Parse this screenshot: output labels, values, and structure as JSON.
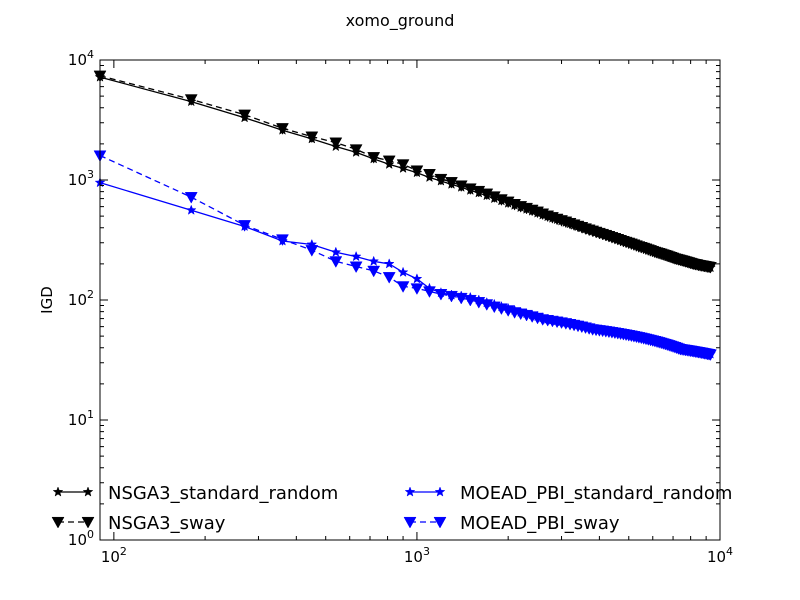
{
  "chart_data": {
    "type": "line",
    "title": "xomo_ground",
    "xlabel": "",
    "ylabel": "IGD",
    "xscale": "log",
    "yscale": "log",
    "xlim": [
      90,
      10000
    ],
    "ylim": [
      1,
      10000
    ],
    "x_ticks": [
      {
        "base": "10",
        "exp": "2",
        "value": 100
      },
      {
        "base": "10",
        "exp": "3",
        "value": 1000
      },
      {
        "base": "10",
        "exp": "4",
        "value": 10000
      }
    ],
    "y_ticks": [
      {
        "base": "10",
        "exp": "0",
        "value": 1
      },
      {
        "base": "10",
        "exp": "1",
        "value": 10
      },
      {
        "base": "10",
        "exp": "2",
        "value": 100
      },
      {
        "base": "10",
        "exp": "3",
        "value": 1000
      },
      {
        "base": "10",
        "exp": "4",
        "value": 10000
      }
    ],
    "legend_position": "bottom-left",
    "series": [
      {
        "name": "NSGA3_standard_random",
        "color": "#000000",
        "line": "solid",
        "marker": "star",
        "x": [
          90,
          180,
          270,
          360,
          450,
          540,
          630,
          720,
          810,
          900,
          1000,
          1100,
          1200,
          1300,
          1400,
          1500,
          1600,
          1700,
          1800,
          1900,
          2000,
          2100,
          2200,
          2300,
          2400,
          2500,
          2600,
          2700,
          2800,
          2900,
          3000,
          3100,
          3200,
          3300,
          3400,
          3500,
          3600,
          3700,
          3800,
          3900,
          4000,
          4100,
          4200,
          4300,
          4400,
          4500,
          4600,
          4700,
          4800,
          4900,
          5000,
          5100,
          5200,
          5300,
          5400,
          5500,
          5600,
          5700,
          5800,
          5900,
          6000,
          6100,
          6200,
          6300,
          6400,
          6500,
          6600,
          6700,
          6800,
          6900,
          7000,
          7100,
          7200,
          7300,
          7400,
          7500,
          7600,
          7700,
          7800,
          7900,
          8000,
          8100,
          8200,
          8300,
          8400,
          8500,
          8600,
          8700,
          8800,
          8900,
          9000,
          9100,
          9200,
          9300
        ],
        "values": [
          7200,
          4500,
          3300,
          2600,
          2200,
          1900,
          1700,
          1500,
          1350,
          1250,
          1150,
          1050,
          980,
          920,
          870,
          820,
          780,
          740,
          700,
          670,
          640,
          615,
          590,
          570,
          550,
          530,
          510,
          495,
          480,
          468,
          455,
          443,
          432,
          420,
          410,
          400,
          390,
          382,
          374,
          366,
          358,
          351,
          344,
          337,
          330,
          324,
          318,
          312,
          306,
          301,
          296,
          291,
          286,
          281,
          276,
          272,
          268,
          264,
          260,
          256,
          252,
          249,
          246,
          243,
          240,
          237,
          234,
          231,
          228,
          225,
          223,
          220,
          218,
          216,
          214,
          212,
          210,
          208,
          206,
          204,
          202,
          200,
          198,
          197,
          196,
          194,
          193,
          192,
          191,
          190,
          189,
          188,
          187,
          186
        ]
      },
      {
        "name": "NSGA3_sway",
        "color": "#000000",
        "line": "dashed",
        "marker": "triangle-down",
        "x": [
          90,
          180,
          270,
          360,
          450,
          540,
          630,
          720,
          810,
          900,
          1000,
          1100,
          1200,
          1300,
          1400,
          1500,
          1600,
          1700,
          1800,
          1900,
          2000,
          2100,
          2200,
          2300,
          2400,
          2500,
          2600,
          2700,
          2800,
          2900,
          3000,
          3100,
          3200,
          3300,
          3400,
          3500,
          3600,
          3700,
          3800,
          3900,
          4000,
          4100,
          4200,
          4300,
          4400,
          4500,
          4600,
          4700,
          4800,
          4900,
          5000,
          5100,
          5200,
          5300,
          5400,
          5500,
          5600,
          5700,
          5800,
          5900,
          6000,
          6100,
          6200,
          6300,
          6400,
          6500,
          6600,
          6700,
          6800,
          6900,
          7000,
          7100,
          7200,
          7300,
          7400,
          7500,
          7600,
          7700,
          7800,
          7900,
          8000,
          8100,
          8200,
          8300,
          8400,
          8500,
          8600,
          8700,
          8800,
          8900,
          9000,
          9100,
          9200,
          9300
        ],
        "values": [
          7400,
          4700,
          3500,
          2700,
          2300,
          2050,
          1800,
          1550,
          1450,
          1350,
          1200,
          1120,
          1020,
          960,
          900,
          850,
          810,
          770,
          730,
          690,
          660,
          630,
          605,
          585,
          565,
          545,
          525,
          505,
          490,
          475,
          462,
          450,
          438,
          426,
          415,
          405,
          395,
          386,
          378,
          370,
          362,
          355,
          348,
          341,
          334,
          328,
          322,
          316,
          310,
          305,
          300,
          295,
          290,
          285,
          280,
          276,
          272,
          268,
          264,
          260,
          256,
          252,
          249,
          246,
          243,
          240,
          237,
          234,
          231,
          228,
          225,
          222,
          220,
          218,
          216,
          214,
          212,
          210,
          208,
          206,
          204,
          202,
          200,
          199,
          198,
          196,
          195,
          194,
          193,
          192,
          191,
          190,
          189,
          188
        ]
      },
      {
        "name": "MOEAD_PBI_standard_random",
        "color": "#0000ff",
        "line": "solid",
        "marker": "star",
        "x": [
          90,
          180,
          270,
          360,
          450,
          540,
          630,
          720,
          810,
          900,
          1000,
          1100,
          1200,
          1300,
          1400,
          1500,
          1600,
          1700,
          1800,
          1900,
          2000,
          2100,
          2200,
          2300,
          2400,
          2500,
          2600,
          2700,
          2800,
          2900,
          3000,
          3100,
          3200,
          3300,
          3400,
          3500,
          3600,
          3700,
          3800,
          3900,
          4000,
          4100,
          4200,
          4300,
          4400,
          4500,
          4600,
          4700,
          4800,
          4900,
          5000,
          5100,
          5200,
          5300,
          5400,
          5500,
          5600,
          5700,
          5800,
          5900,
          6000,
          6100,
          6200,
          6300,
          6400,
          6500,
          6600,
          6700,
          6800,
          6900,
          7000,
          7100,
          7200,
          7300,
          7400,
          7500,
          7600,
          7700,
          7800,
          7900,
          8000,
          8100,
          8200,
          8300,
          8400,
          8500,
          8600,
          8700,
          8800,
          8900,
          9000,
          9100,
          9200,
          9300
        ],
        "values": [
          950,
          560,
          410,
          310,
          290,
          250,
          230,
          210,
          200,
          170,
          150,
          125,
          115,
          110,
          108,
          105,
          100,
          95,
          92,
          88,
          85,
          82,
          79,
          77,
          75,
          73,
          71,
          69,
          68,
          67,
          66,
          65,
          64,
          63,
          62,
          61,
          60,
          59,
          58,
          57,
          56.5,
          56,
          55.5,
          55,
          54.5,
          54,
          53.5,
          53,
          52.5,
          52,
          51.5,
          51,
          50.5,
          50,
          49.5,
          49,
          48.5,
          48,
          47.5,
          47,
          46.5,
          46,
          45.5,
          45,
          44.5,
          44,
          43.5,
          43,
          42.5,
          42,
          41.5,
          41,
          40.5,
          40,
          39.5,
          39,
          38.8,
          38.6,
          38.4,
          38.2,
          38,
          37.8,
          37.6,
          37.4,
          37.2,
          37,
          36.8,
          36.6,
          36.4,
          36.2,
          36,
          35.8,
          35.6,
          35.4
        ]
      },
      {
        "name": "MOEAD_PBI_sway",
        "color": "#0000ff",
        "line": "dashed",
        "marker": "triangle-down",
        "x": [
          90,
          180,
          270,
          360,
          450,
          540,
          630,
          720,
          810,
          900,
          1000,
          1100,
          1200,
          1300,
          1400,
          1500,
          1600,
          1700,
          1800,
          1900,
          2000,
          2100,
          2200,
          2300,
          2400,
          2500,
          2600,
          2700,
          2800,
          2900,
          3000,
          3100,
          3200,
          3300,
          3400,
          3500,
          3600,
          3700,
          3800,
          3900,
          4000,
          4100,
          4200,
          4300,
          4400,
          4500,
          4600,
          4700,
          4800,
          4900,
          5000,
          5100,
          5200,
          5300,
          5400,
          5500,
          5600,
          5700,
          5800,
          5900,
          6000,
          6100,
          6200,
          6300,
          6400,
          6500,
          6600,
          6700,
          6800,
          6900,
          7000,
          7100,
          7200,
          7300,
          7400,
          7500,
          7600,
          7700,
          7800,
          7900,
          8000,
          8100,
          8200,
          8300,
          8400,
          8500,
          8600,
          8700,
          8800,
          8900,
          9000,
          9100,
          9200,
          9300
        ],
        "values": [
          1600,
          720,
          420,
          320,
          260,
          210,
          190,
          175,
          155,
          130,
          125,
          118,
          112,
          108,
          104,
          100,
          96,
          92,
          88,
          85,
          82,
          79,
          77,
          75,
          73,
          71,
          69,
          68,
          67,
          66,
          65,
          64,
          63,
          62,
          61,
          60,
          59,
          58,
          57,
          56.5,
          56,
          55.5,
          55,
          54.5,
          54,
          53.5,
          53,
          52.5,
          52,
          51.5,
          51,
          50.5,
          50,
          49.5,
          49,
          48.5,
          48,
          47.5,
          47,
          46.5,
          46,
          45.5,
          45,
          44.5,
          44,
          43.5,
          43,
          42.5,
          42,
          41.5,
          41,
          40.5,
          40,
          39.5,
          39,
          38.8,
          38.6,
          38.4,
          38.2,
          38,
          37.8,
          37.6,
          37.4,
          37.2,
          37,
          36.8,
          36.6,
          36.4,
          36.2,
          36,
          35.8,
          35.6,
          35.4,
          35.2
        ]
      }
    ]
  }
}
